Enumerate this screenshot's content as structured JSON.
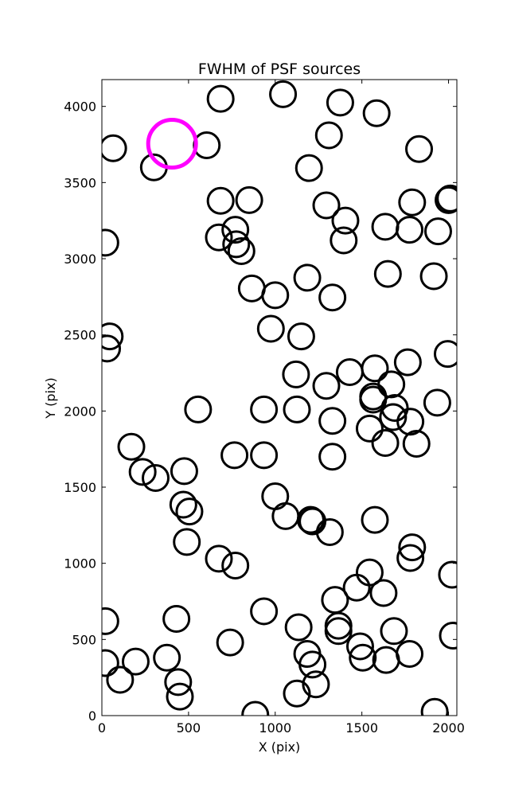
{
  "chart_data": {
    "type": "scatter",
    "title": "FWHM of PSF sources",
    "xlabel": "X (pix)",
    "ylabel": "Y (pix)",
    "xlim": [
      0,
      2048
    ],
    "ylim": [
      0,
      4176
    ],
    "x_ticks": [
      0,
      500,
      1000,
      1500,
      2000
    ],
    "y_ticks": [
      0,
      500,
      1000,
      1500,
      2000,
      2500,
      3000,
      3500,
      4000
    ],
    "grid": false,
    "legend": "none",
    "marker": "open-circle",
    "marker_color": "#000000",
    "highlight_color": "#ff00ff",
    "highlight_point": {
      "x": 405,
      "y": 3755
    },
    "sources": [
      {
        "x": 685,
        "y": 4050
      },
      {
        "x": 1045,
        "y": 4080
      },
      {
        "x": 1375,
        "y": 4025
      },
      {
        "x": 1585,
        "y": 3955
      },
      {
        "x": 65,
        "y": 3725
      },
      {
        "x": 605,
        "y": 3745
      },
      {
        "x": 1310,
        "y": 3810
      },
      {
        "x": 1830,
        "y": 3720
      },
      {
        "x": 300,
        "y": 3600
      },
      {
        "x": 1195,
        "y": 3595
      },
      {
        "x": 685,
        "y": 3380
      },
      {
        "x": 850,
        "y": 3385
      },
      {
        "x": 1295,
        "y": 3350
      },
      {
        "x": 1790,
        "y": 3370
      },
      {
        "x": 2000,
        "y": 3385
      },
      {
        "x": 2010,
        "y": 3395
      },
      {
        "x": 1405,
        "y": 3250
      },
      {
        "x": 1635,
        "y": 3210
      },
      {
        "x": 1775,
        "y": 3190
      },
      {
        "x": 1940,
        "y": 3180
      },
      {
        "x": 770,
        "y": 3190
      },
      {
        "x": 675,
        "y": 3140
      },
      {
        "x": 775,
        "y": 3095
      },
      {
        "x": 805,
        "y": 3050
      },
      {
        "x": 20,
        "y": 3105
      },
      {
        "x": 1395,
        "y": 3120
      },
      {
        "x": 1650,
        "y": 2900
      },
      {
        "x": 1185,
        "y": 2875
      },
      {
        "x": 1915,
        "y": 2885
      },
      {
        "x": 865,
        "y": 2805
      },
      {
        "x": 1000,
        "y": 2760
      },
      {
        "x": 1330,
        "y": 2745
      },
      {
        "x": 975,
        "y": 2540
      },
      {
        "x": 1150,
        "y": 2490
      },
      {
        "x": 45,
        "y": 2490
      },
      {
        "x": 30,
        "y": 2410
      },
      {
        "x": 1995,
        "y": 2375
      },
      {
        "x": 1765,
        "y": 2320
      },
      {
        "x": 1575,
        "y": 2280
      },
      {
        "x": 1120,
        "y": 2240
      },
      {
        "x": 1430,
        "y": 2255
      },
      {
        "x": 1295,
        "y": 2165
      },
      {
        "x": 1670,
        "y": 2175
      },
      {
        "x": 1565,
        "y": 2095
      },
      {
        "x": 1565,
        "y": 2075
      },
      {
        "x": 1935,
        "y": 2055
      },
      {
        "x": 1690,
        "y": 2020
      },
      {
        "x": 555,
        "y": 2010
      },
      {
        "x": 935,
        "y": 2010
      },
      {
        "x": 1125,
        "y": 2010
      },
      {
        "x": 1680,
        "y": 1960
      },
      {
        "x": 1780,
        "y": 1930
      },
      {
        "x": 1330,
        "y": 1935
      },
      {
        "x": 1545,
        "y": 1885
      },
      {
        "x": 1635,
        "y": 1790
      },
      {
        "x": 1815,
        "y": 1785
      },
      {
        "x": 170,
        "y": 1765
      },
      {
        "x": 765,
        "y": 1710
      },
      {
        "x": 935,
        "y": 1710
      },
      {
        "x": 1330,
        "y": 1700
      },
      {
        "x": 235,
        "y": 1600
      },
      {
        "x": 310,
        "y": 1560
      },
      {
        "x": 475,
        "y": 1605
      },
      {
        "x": 1000,
        "y": 1440
      },
      {
        "x": 470,
        "y": 1385
      },
      {
        "x": 505,
        "y": 1340
      },
      {
        "x": 1060,
        "y": 1310
      },
      {
        "x": 1205,
        "y": 1285
      },
      {
        "x": 1215,
        "y": 1275
      },
      {
        "x": 1575,
        "y": 1285
      },
      {
        "x": 1315,
        "y": 1205
      },
      {
        "x": 490,
        "y": 1140
      },
      {
        "x": 1790,
        "y": 1105
      },
      {
        "x": 1780,
        "y": 1035
      },
      {
        "x": 675,
        "y": 1030
      },
      {
        "x": 770,
        "y": 985
      },
      {
        "x": 1545,
        "y": 940
      },
      {
        "x": 2020,
        "y": 925
      },
      {
        "x": 1470,
        "y": 840
      },
      {
        "x": 1625,
        "y": 805
      },
      {
        "x": 1345,
        "y": 760
      },
      {
        "x": 935,
        "y": 685
      },
      {
        "x": 20,
        "y": 620
      },
      {
        "x": 430,
        "y": 635
      },
      {
        "x": 1135,
        "y": 580
      },
      {
        "x": 1365,
        "y": 590
      },
      {
        "x": 1365,
        "y": 555
      },
      {
        "x": 1685,
        "y": 555
      },
      {
        "x": 2025,
        "y": 525
      },
      {
        "x": 740,
        "y": 480
      },
      {
        "x": 1490,
        "y": 455
      },
      {
        "x": 1185,
        "y": 405
      },
      {
        "x": 1775,
        "y": 405
      },
      {
        "x": 1505,
        "y": 380
      },
      {
        "x": 375,
        "y": 380
      },
      {
        "x": 195,
        "y": 355
      },
      {
        "x": 20,
        "y": 345
      },
      {
        "x": 1215,
        "y": 335
      },
      {
        "x": 1640,
        "y": 365
      },
      {
        "x": 105,
        "y": 235
      },
      {
        "x": 440,
        "y": 220
      },
      {
        "x": 1235,
        "y": 205
      },
      {
        "x": 450,
        "y": 125
      },
      {
        "x": 1125,
        "y": 145
      },
      {
        "x": 885,
        "y": 5
      },
      {
        "x": 1920,
        "y": 25
      }
    ]
  }
}
